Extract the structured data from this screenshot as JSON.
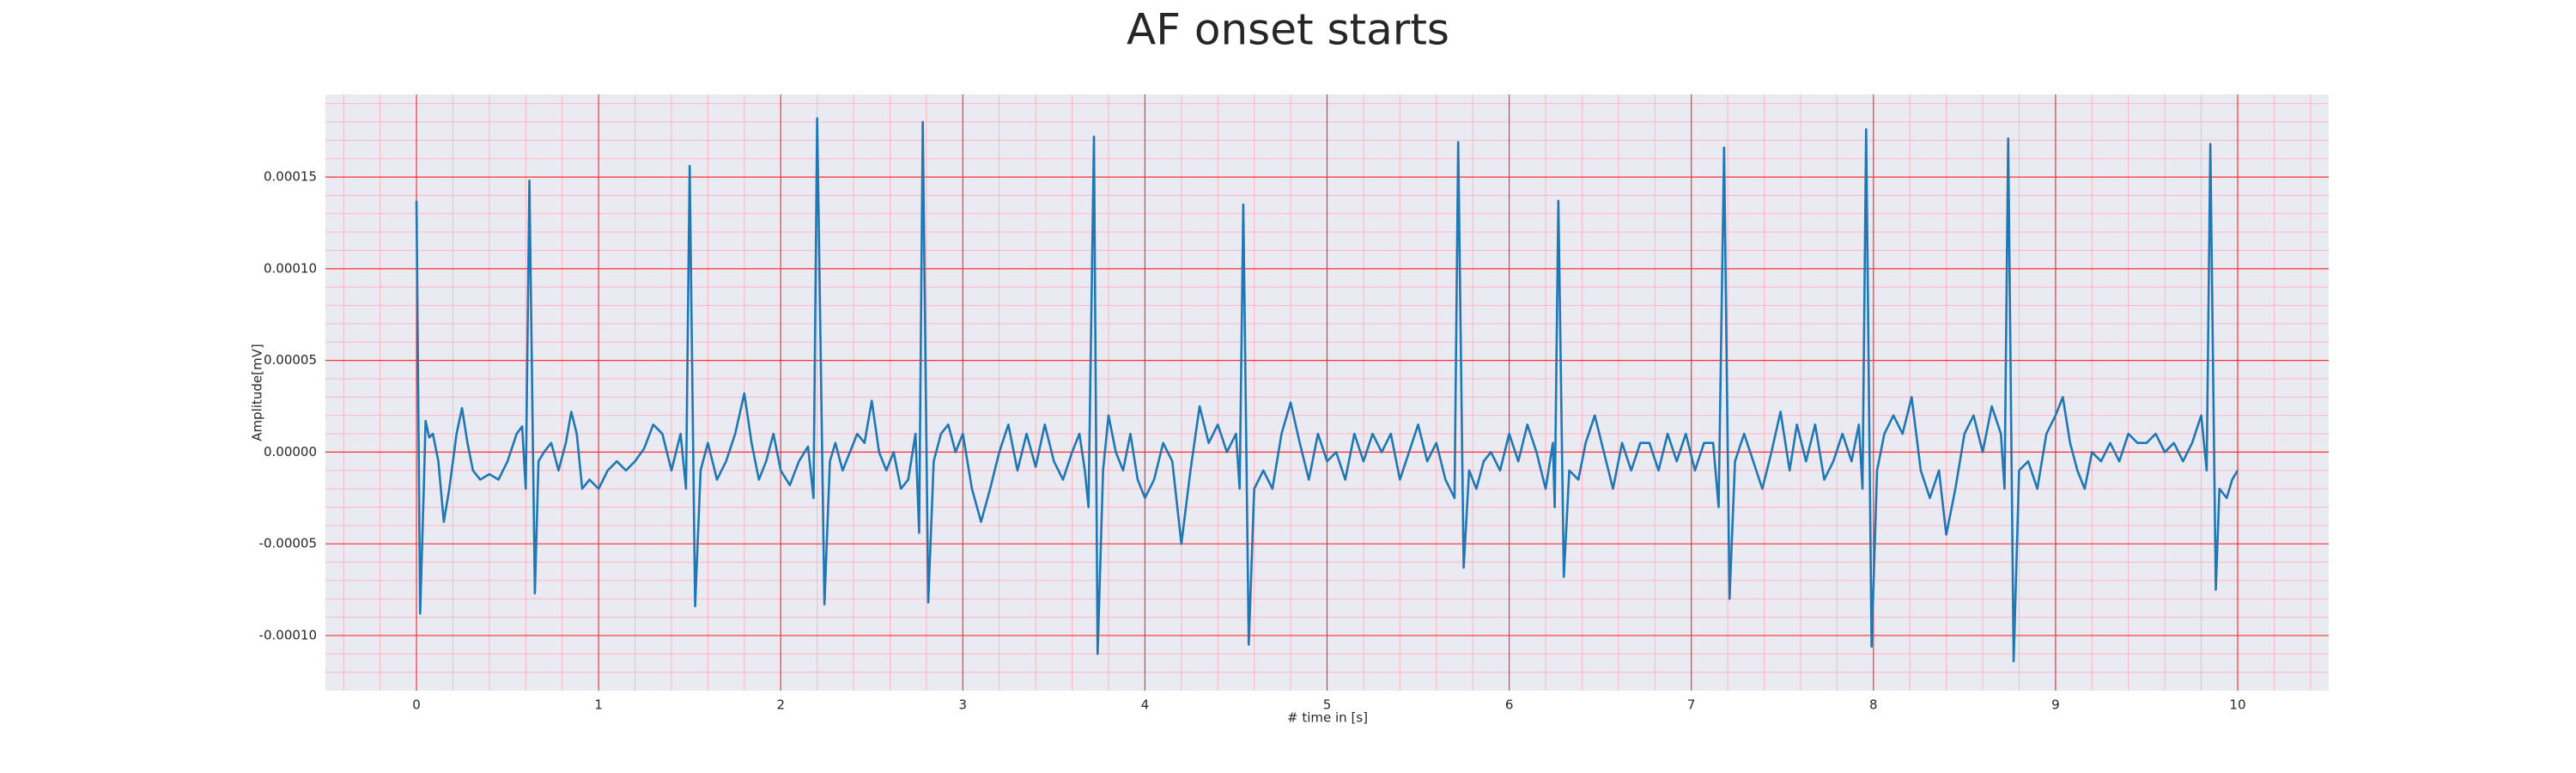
{
  "chart_data": {
    "type": "line",
    "title": "AF onset starts",
    "x_label": "# time in [s]",
    "y_label": "Amplitude[mV]",
    "color": "#1f77b4",
    "background": "#eaeaf2",
    "grid": true,
    "grid_color": "#ff3030",
    "minor_grid_color": "#ffb6c1",
    "xlim": [
      -0.5,
      10.5
    ],
    "ylim": [
      -0.00013,
      0.000195
    ],
    "xticks": [
      0,
      1,
      2,
      3,
      4,
      5,
      6,
      7,
      8,
      9,
      10
    ],
    "yticks": [
      {
        "value": -0.0001,
        "label": "-0.00010"
      },
      {
        "value": -5e-05,
        "label": "-0.00005"
      },
      {
        "value": 0,
        "label": "0.00000"
      },
      {
        "value": 5e-05,
        "label": "0.00005"
      },
      {
        "value": 0.0001,
        "label": "0.00010"
      },
      {
        "value": 0.00015,
        "label": "0.00015"
      }
    ],
    "xminorticks": [
      -0.4,
      -0.2,
      0.2,
      0.4,
      0.6,
      0.8,
      1.2,
      1.4,
      1.6,
      1.8,
      2.2,
      2.4,
      2.6,
      2.8,
      3.2,
      3.4,
      3.6,
      3.8,
      4.2,
      4.4,
      4.6,
      4.8,
      5.2,
      5.4,
      5.6,
      5.8,
      6.2,
      6.4,
      6.6,
      6.8,
      7.2,
      7.4,
      7.6,
      7.8,
      8.2,
      8.4,
      8.6,
      8.8,
      9.2,
      9.4,
      9.6,
      9.8,
      10.2,
      10.4
    ],
    "yminorticks": [
      -0.00012,
      -0.00011,
      -9e-05,
      -8e-05,
      -7e-05,
      -6e-05,
      -4e-05,
      -3e-05,
      -2e-05,
      -1e-05,
      1e-05,
      2e-05,
      3e-05,
      4e-05,
      6e-05,
      7e-05,
      8e-05,
      9e-05,
      0.00011,
      0.00012,
      0.00013,
      0.00014,
      0.00016,
      0.00017,
      0.00018,
      0.00019
    ],
    "x": [
      0.0,
      0.02,
      0.04,
      0.05,
      0.07,
      0.09,
      0.12,
      0.15,
      0.18,
      0.22,
      0.25,
      0.28,
      0.31,
      0.35,
      0.4,
      0.45,
      0.5,
      0.55,
      0.58,
      0.6,
      0.62,
      0.65,
      0.67,
      0.7,
      0.74,
      0.78,
      0.82,
      0.85,
      0.88,
      0.91,
      0.95,
      1.0,
      1.05,
      1.1,
      1.15,
      1.2,
      1.25,
      1.3,
      1.35,
      1.4,
      1.45,
      1.48,
      1.5,
      1.53,
      1.56,
      1.6,
      1.65,
      1.7,
      1.75,
      1.8,
      1.84,
      1.88,
      1.92,
      1.96,
      2.0,
      2.05,
      2.1,
      2.15,
      2.18,
      2.2,
      2.24,
      2.27,
      2.3,
      2.34,
      2.38,
      2.42,
      2.46,
      2.5,
      2.54,
      2.58,
      2.62,
      2.66,
      2.7,
      2.74,
      2.76,
      2.78,
      2.81,
      2.84,
      2.88,
      2.92,
      2.96,
      3.0,
      3.05,
      3.1,
      3.15,
      3.2,
      3.25,
      3.3,
      3.35,
      3.4,
      3.45,
      3.5,
      3.55,
      3.6,
      3.64,
      3.67,
      3.69,
      3.72,
      3.74,
      3.77,
      3.8,
      3.84,
      3.88,
      3.92,
      3.96,
      4.0,
      4.05,
      4.1,
      4.15,
      4.2,
      4.25,
      4.3,
      4.35,
      4.4,
      4.45,
      4.5,
      4.52,
      4.54,
      4.57,
      4.6,
      4.65,
      4.7,
      4.75,
      4.8,
      4.85,
      4.9,
      4.95,
      5.0,
      5.05,
      5.1,
      5.15,
      5.2,
      5.25,
      5.3,
      5.35,
      5.4,
      5.45,
      5.5,
      5.55,
      5.6,
      5.65,
      5.7,
      5.72,
      5.75,
      5.78,
      5.82,
      5.86,
      5.9,
      5.95,
      6.0,
      6.05,
      6.1,
      6.15,
      6.2,
      6.24,
      6.25,
      6.27,
      6.3,
      6.33,
      6.38,
      6.42,
      6.47,
      6.52,
      6.57,
      6.62,
      6.67,
      6.72,
      6.77,
      6.82,
      6.87,
      6.92,
      6.97,
      7.02,
      7.07,
      7.12,
      7.15,
      7.18,
      7.21,
      7.24,
      7.29,
      7.34,
      7.39,
      7.44,
      7.49,
      7.54,
      7.58,
      7.63,
      7.68,
      7.73,
      7.78,
      7.83,
      7.88,
      7.92,
      7.94,
      7.96,
      7.99,
      8.02,
      8.06,
      8.11,
      8.16,
      8.21,
      8.26,
      8.31,
      8.36,
      8.4,
      8.45,
      8.5,
      8.55,
      8.6,
      8.65,
      8.7,
      8.72,
      8.74,
      8.77,
      8.8,
      8.85,
      8.9,
      8.95,
      9.0,
      9.04,
      9.08,
      9.12,
      9.16,
      9.2,
      9.25,
      9.3,
      9.35,
      9.4,
      9.45,
      9.5,
      9.55,
      9.6,
      9.65,
      9.7,
      9.75,
      9.8,
      9.83,
      9.85,
      9.88,
      9.9,
      9.94,
      9.97,
      10.0
    ],
    "values": [
      0.000137,
      -8.8e-05,
      -2e-05,
      1.7e-05,
      8e-06,
      1e-05,
      -5e-06,
      -3.8e-05,
      -2e-05,
      1e-05,
      2.4e-05,
      5e-06,
      -1e-05,
      -1.5e-05,
      -1.2e-05,
      -1.5e-05,
      -5e-06,
      1e-05,
      1.4e-05,
      -2e-05,
      0.000148,
      -7.7e-05,
      -5e-06,
      0,
      5e-06,
      -1e-05,
      5e-06,
      2.2e-05,
      1e-05,
      -2e-05,
      -1.5e-05,
      -2e-05,
      -1e-05,
      -5e-06,
      -1e-05,
      -5e-06,
      2e-06,
      1.5e-05,
      1e-05,
      -1e-05,
      1e-05,
      -2e-05,
      0.000156,
      -8.4e-05,
      -1e-05,
      5e-06,
      -1.5e-05,
      -5e-06,
      1e-05,
      3.2e-05,
      5e-06,
      -1.5e-05,
      -5e-06,
      1e-05,
      -1e-05,
      -1.8e-05,
      -5e-06,
      3e-06,
      -2.5e-05,
      0.000182,
      -8.3e-05,
      -5e-06,
      5e-06,
      -1e-05,
      0,
      1e-05,
      5e-06,
      2.8e-05,
      0,
      -1e-05,
      0,
      -2e-05,
      -1.5e-05,
      1e-05,
      -4.4e-05,
      0.00018,
      -8.2e-05,
      -5e-06,
      1e-05,
      1.5e-05,
      0,
      1e-05,
      -2e-05,
      -3.8e-05,
      -2e-05,
      0,
      1.5e-05,
      -1e-05,
      1e-05,
      -8e-06,
      1.5e-05,
      -5e-06,
      -1.5e-05,
      0,
      1e-05,
      -1e-05,
      -3e-05,
      0.000172,
      -0.00011,
      -1e-05,
      2e-05,
      0,
      -1e-05,
      1e-05,
      -1.5e-05,
      -2.5e-05,
      -1.5e-05,
      5e-06,
      -5e-06,
      -5e-05,
      -1e-05,
      2.5e-05,
      5e-06,
      1.5e-05,
      0,
      1e-05,
      -2e-05,
      0.000135,
      -0.000105,
      -2e-05,
      -1e-05,
      -2e-05,
      1e-05,
      2.7e-05,
      5e-06,
      -1.5e-05,
      1e-05,
      -5e-06,
      0,
      -1.5e-05,
      1e-05,
      -5e-06,
      1e-05,
      0,
      1e-05,
      -1.5e-05,
      0,
      1.5e-05,
      -5e-06,
      5e-06,
      -1.5e-05,
      -2.5e-05,
      0.000169,
      -6.3e-05,
      -1e-05,
      -2e-05,
      -5e-06,
      0,
      -1e-05,
      1e-05,
      -5e-06,
      1.5e-05,
      0,
      -2e-05,
      5e-06,
      -3e-05,
      0.000137,
      -6.8e-05,
      -1e-05,
      -1.5e-05,
      5e-06,
      2e-05,
      0,
      -2e-05,
      5e-06,
      -1e-05,
      5e-06,
      5e-06,
      -1e-05,
      1e-05,
      -5e-06,
      1e-05,
      -1e-05,
      5e-06,
      5e-06,
      -3e-05,
      0.000166,
      -8e-05,
      -5e-06,
      1e-05,
      -5e-06,
      -2e-05,
      0,
      2.2e-05,
      -1e-05,
      1.5e-05,
      -5e-06,
      1.5e-05,
      -1.5e-05,
      -5e-06,
      1e-05,
      -5e-06,
      1.5e-05,
      -2e-05,
      0.000176,
      -0.000106,
      -1e-05,
      1e-05,
      2e-05,
      1e-05,
      3e-05,
      -1e-05,
      -2.5e-05,
      -1e-05,
      -4.5e-05,
      -2e-05,
      1e-05,
      2e-05,
      0,
      2.5e-05,
      1e-05,
      -2e-05,
      0.000171,
      -0.000114,
      -1e-05,
      -5e-06,
      -2e-05,
      1e-05,
      2e-05,
      3e-05,
      5e-06,
      -1e-05,
      -2e-05,
      0,
      -5e-06,
      5e-06,
      -5e-06,
      1e-05,
      5e-06,
      5e-06,
      1e-05,
      0,
      5e-06,
      -5e-06,
      5e-06,
      2e-05,
      -1e-05,
      0.000168,
      -7.5e-05,
      -2e-05,
      -2.5e-05,
      -1.5e-05,
      -1e-05
    ]
  }
}
